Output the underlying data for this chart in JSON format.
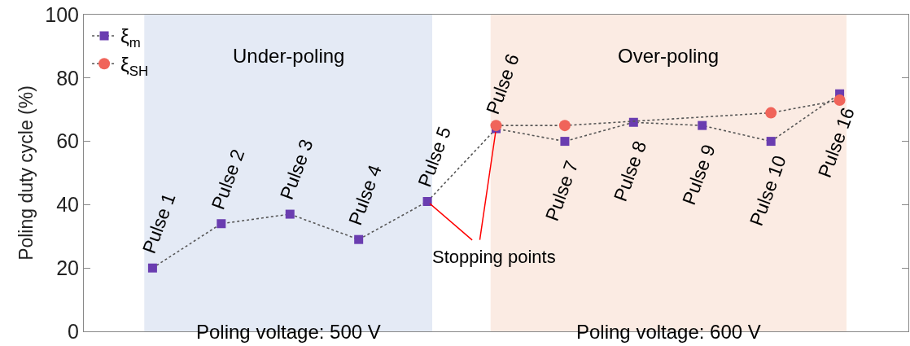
{
  "chart_data": {
    "type": "line",
    "ylabel": "Poling duty cycle (%)",
    "categories": [
      null,
      null,
      null,
      null,
      null,
      null,
      null,
      null,
      null,
      null,
      null
    ],
    "ylim": [
      0,
      100
    ],
    "yticks": [
      0,
      20,
      40,
      60,
      80,
      100
    ],
    "tick_labels": "y",
    "grid": false,
    "legend": "top left",
    "line_style": "dotted",
    "series": [
      {
        "name": "ξ$_{m}$",
        "color": "#6a3db0",
        "marker": "square",
        "values": [
          20,
          34,
          37,
          29,
          41,
          64,
          60,
          66,
          65,
          60,
          75
        ],
        "value_labels": [
          "Pulse 1",
          "Pulse 2",
          "Pulse 3",
          "Pulse 4",
          "Pulse 5",
          "Pulse 6",
          "Pulse 7",
          "Pulse 8",
          "Pulse 9",
          "Pulse 10",
          "Pulse 16"
        ]
      },
      {
        "name": "ξ$_{SH}$",
        "color": "#f0645a",
        "marker": "circle",
        "values": [
          null,
          null,
          null,
          null,
          null,
          65,
          65,
          null,
          null,
          69,
          73
        ]
      }
    ],
    "annotations": [
      "Stopping points",
      "Under-poling",
      "Over-poling",
      "Poling voltage: 500 V",
      "Poling voltage: 600 V"
    ]
  }
}
